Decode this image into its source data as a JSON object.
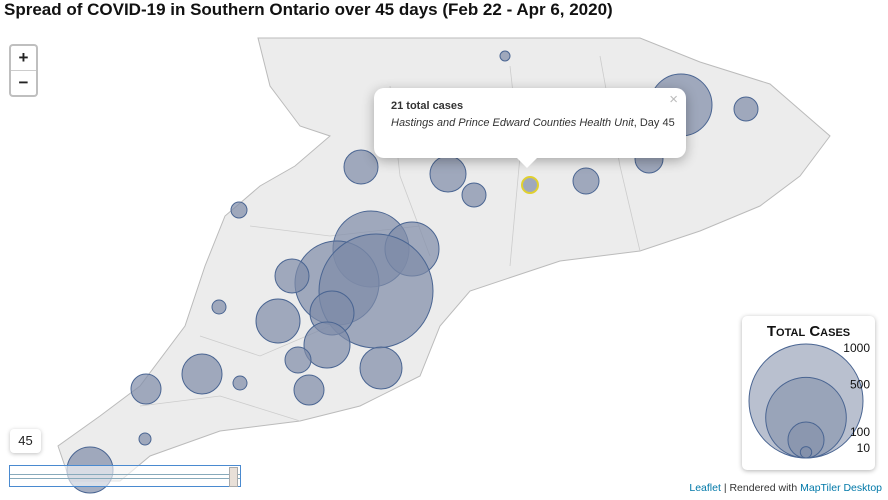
{
  "header": {
    "title": "Spread of COVID-19 in Southern Ontario over 45 days (Feb 22 - Apr 6, 2020)"
  },
  "zoom": {
    "in": "+",
    "out": "−"
  },
  "popup": {
    "heading": "21 total cases",
    "unit": "Hastings and Prince Edward Counties Health Unit",
    "suffix": ", Day 45"
  },
  "slider": {
    "label": "45"
  },
  "legend": {
    "title": "Total Cases",
    "values": [
      1000,
      500,
      100,
      10
    ]
  },
  "attribution": {
    "leaflet": "Leaflet",
    "separator": "| Rendered with",
    "maptiler": "MapTiler Desktop"
  }
}
